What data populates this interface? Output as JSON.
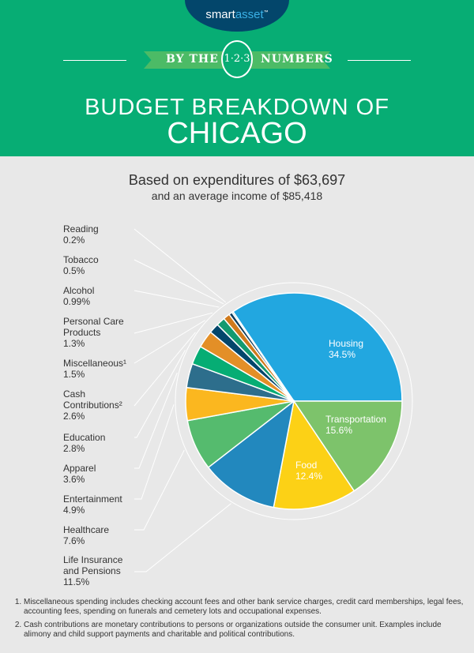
{
  "brand": {
    "logo_left": "smart",
    "logo_right": "asset",
    "trademark": "™"
  },
  "banner": {
    "left": "BY THE",
    "badge": "1·2·3",
    "right": "NUMBERS"
  },
  "title": {
    "line1": "BUDGET BREAKDOWN OF",
    "line2": "CHICAGO"
  },
  "subtitle": {
    "line1": "Based on expenditures of $63,697",
    "line2": "and an average income of $85,418"
  },
  "chart_data": {
    "type": "pie",
    "unit": "%",
    "slices": [
      {
        "label": "Housing",
        "value": 34.5,
        "display": "34.5%",
        "color": "#22a7e0"
      },
      {
        "label": "Transportation",
        "value": 15.6,
        "display": "15.6%",
        "color": "#7dc36b"
      },
      {
        "label": "Food",
        "value": 12.4,
        "display": "12.4%",
        "color": "#fcd116"
      },
      {
        "label": "Life Insurance and Pensions",
        "value": 11.5,
        "display": "11.5%",
        "color": "#2288be"
      },
      {
        "label": "Healthcare",
        "value": 7.6,
        "display": "7.6%",
        "color": "#55bb6e"
      },
      {
        "label": "Entertainment",
        "value": 4.9,
        "display": "4.9%",
        "color": "#fbb71f"
      },
      {
        "label": "Apparel",
        "value": 3.6,
        "display": "3.6%",
        "color": "#2d6e8c"
      },
      {
        "label": "Education",
        "value": 2.8,
        "display": "2.8%",
        "color": "#06ad74"
      },
      {
        "label": "Cash Contributions²",
        "value": 2.6,
        "display": "2.6%",
        "color": "#e38f27"
      },
      {
        "label": "Miscellaneous¹",
        "value": 1.5,
        "display": "1.5%",
        "color": "#03466b"
      },
      {
        "label": "Personal Care Products",
        "value": 1.3,
        "display": "1.3%",
        "color": "#149a70"
      },
      {
        "label": "Alcohol",
        "value": 0.99,
        "display": "0.99%",
        "color": "#d07a1d"
      },
      {
        "label": "Tobacco",
        "value": 0.5,
        "display": "0.5%",
        "color": "#0f3d5c"
      },
      {
        "label": "Reading",
        "value": 0.2,
        "display": "0.2%",
        "color": "#2a8a7e"
      }
    ]
  },
  "footnotes": [
    "Miscellaneous spending includes checking account fees and other bank service charges, credit card memberships, legal fees, accounting fees, spending on funerals and cemetery lots and occupational expenses.",
    "Cash contributions are monetary contributions to persons or organizations outside the consumer unit. Examples include alimony and child support payments and charitable and political contributions."
  ]
}
